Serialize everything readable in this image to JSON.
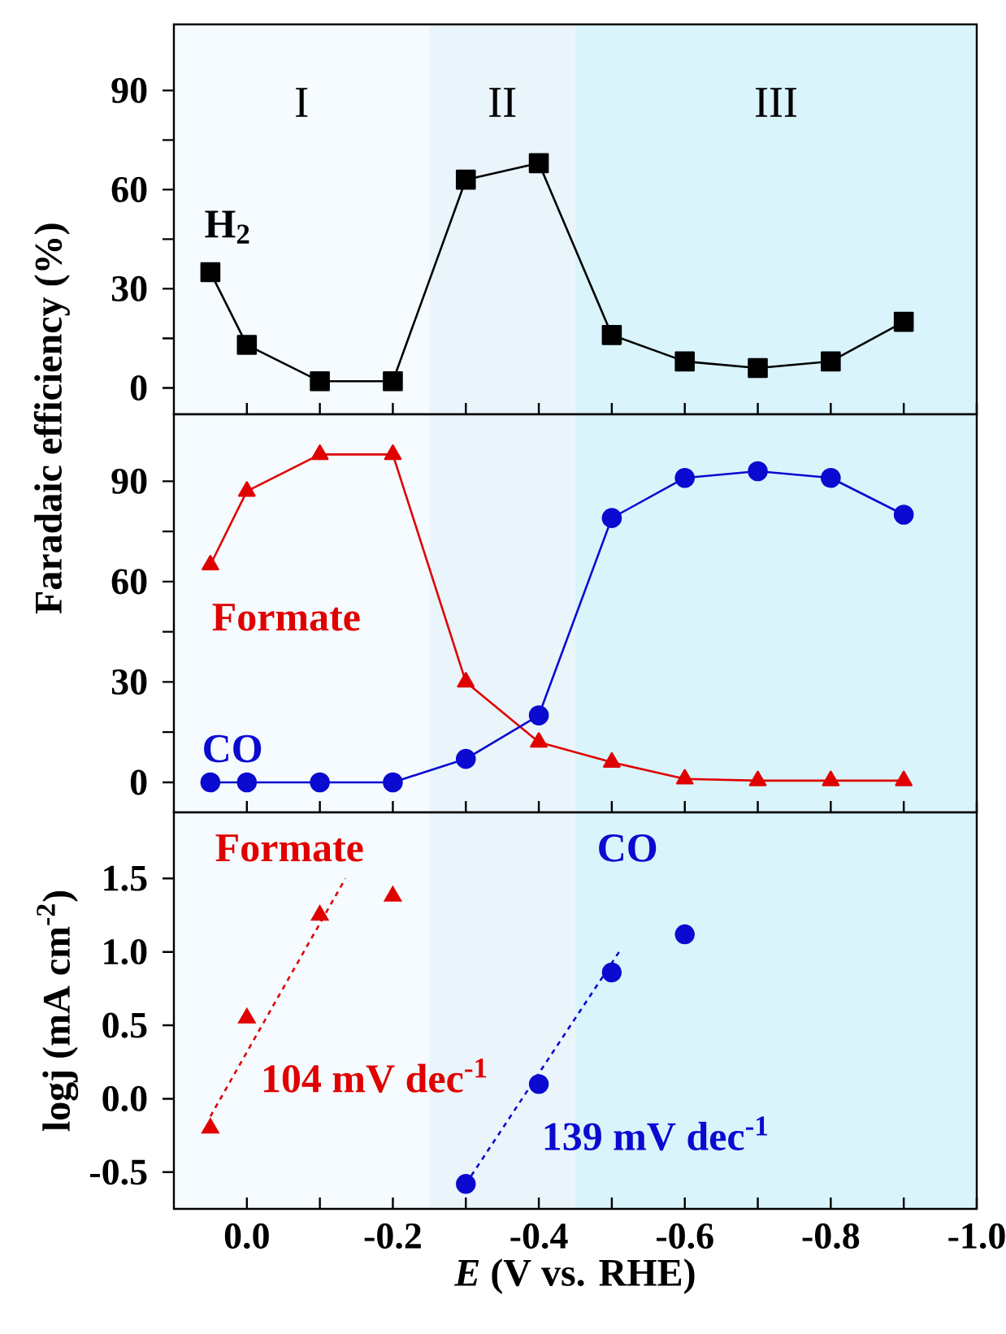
{
  "chart_data": [
    {
      "type": "line",
      "ylabel": "Faradaic efficiency (%)",
      "x": [
        0.05,
        0,
        -0.1,
        -0.2,
        -0.3,
        -0.4,
        -0.5,
        -0.6,
        -0.7,
        -0.8,
        -0.9
      ],
      "xlim": [
        0.1,
        -1.0
      ],
      "xticks": [
        {
          "value": 0,
          "label": null
        },
        {
          "value": -0.1,
          "label": null
        },
        {
          "value": -0.2,
          "label": null
        },
        {
          "value": -0.3,
          "label": null
        },
        {
          "value": -0.4,
          "label": null
        },
        {
          "value": -0.5,
          "label": null
        },
        {
          "value": -0.6,
          "label": null
        },
        {
          "value": -0.7,
          "label": null
        },
        {
          "value": -0.8,
          "label": null
        },
        {
          "value": -0.9,
          "label": null
        },
        {
          "value": -1.0,
          "label": null
        }
      ],
      "ylim": [
        -8,
        110
      ],
      "yticks": [
        0,
        {
          "value": 15,
          "label": null
        },
        30,
        {
          "value": 45,
          "label": null
        },
        60,
        {
          "value": 75,
          "label": null
        },
        90
      ],
      "tick_labels": "y",
      "bands": [
        {
          "axis": "x",
          "from": 0.1,
          "to": -0.25,
          "label": "I",
          "color": "#f5fbfe"
        },
        {
          "axis": "x",
          "from": -0.25,
          "to": -0.45,
          "label": "II",
          "color": "#eaf5fb"
        },
        {
          "axis": "x",
          "from": -0.45,
          "to": -1.0,
          "label": "III",
          "color": "#d9f4fb"
        }
      ],
      "series": [
        {
          "name": "H$_{2}$",
          "color": "#000000",
          "marker": "square",
          "values": [
            35,
            13,
            2,
            2,
            63,
            68,
            16,
            8,
            6,
            8,
            20
          ]
        }
      ]
    },
    {
      "type": "line",
      "x": [
        0.05,
        0,
        -0.1,
        -0.2,
        -0.3,
        -0.4,
        -0.5,
        -0.6,
        -0.7,
        -0.8,
        -0.9
      ],
      "xlim": [
        0.1,
        -1.0
      ],
      "xticks": [
        {
          "value": 0,
          "label": null
        },
        {
          "value": -0.1,
          "label": null
        },
        {
          "value": -0.2,
          "label": null
        },
        {
          "value": -0.3,
          "label": null
        },
        {
          "value": -0.4,
          "label": null
        },
        {
          "value": -0.5,
          "label": null
        },
        {
          "value": -0.6,
          "label": null
        },
        {
          "value": -0.7,
          "label": null
        },
        {
          "value": -0.8,
          "label": null
        },
        {
          "value": -0.9,
          "label": null
        },
        {
          "value": -1.0,
          "label": null
        }
      ],
      "ylim": [
        -9,
        110
      ],
      "yticks": [
        0,
        {
          "value": 15,
          "label": null
        },
        30,
        {
          "value": 45,
          "label": null
        },
        60,
        {
          "value": 75,
          "label": null
        },
        90
      ],
      "tick_labels": "y",
      "bands": [
        {
          "axis": "x",
          "from": 0.1,
          "to": -0.25,
          "color": "#f5fbfe"
        },
        {
          "axis": "x",
          "from": -0.25,
          "to": -0.45,
          "color": "#eaf5fb"
        },
        {
          "axis": "x",
          "from": -0.45,
          "to": -1.0,
          "color": "#d9f4fb"
        }
      ],
      "series": [
        {
          "name": "Formate",
          "color": "#e00000",
          "marker": "triangle",
          "values": [
            65,
            87,
            98,
            98,
            30,
            12,
            6,
            1,
            0.5,
            0.5,
            0.5
          ]
        },
        {
          "name": "CO",
          "color": "#0a0ad0",
          "marker": "circle",
          "values": [
            0,
            0,
            0,
            0,
            7,
            20,
            79,
            91,
            93,
            91,
            80
          ]
        }
      ]
    },
    {
      "type": "scatter",
      "ylabel": "logj  (mA cm$^{-2}$)",
      "xlabel": "*E* (V vs. RHE)",
      "xlim": [
        0.1,
        -1.0
      ],
      "xticks": [
        {
          "value": 0,
          "label": "0.0"
        },
        {
          "value": -0.1,
          "label": null
        },
        {
          "value": -0.2,
          "label": "-0.2"
        },
        {
          "value": -0.3,
          "label": null
        },
        {
          "value": -0.4,
          "label": "-0.4"
        },
        {
          "value": -0.5,
          "label": null
        },
        {
          "value": -0.6,
          "label": "-0.6"
        },
        {
          "value": -0.7,
          "label": null
        },
        {
          "value": -0.8,
          "label": "-0.8"
        },
        {
          "value": -0.9,
          "label": null
        },
        {
          "value": -1.0,
          "label": "-1.0"
        }
      ],
      "ylim": [
        -0.75,
        1.95
      ],
      "yticks": [
        {
          "value": -0.5,
          "label": "-0.5"
        },
        {
          "value": 0,
          "label": "0.0"
        },
        {
          "value": 0.5,
          "label": "0.5"
        },
        {
          "value": 1.0,
          "label": "1.0"
        },
        {
          "value": 1.5,
          "label": "1.5"
        }
      ],
      "bands": [
        {
          "axis": "x",
          "from": 0.1,
          "to": -0.25,
          "color": "#f5fbfe"
        },
        {
          "axis": "x",
          "from": -0.25,
          "to": -0.45,
          "color": "#eaf5fb"
        },
        {
          "axis": "x",
          "from": -0.45,
          "to": -1.0,
          "color": "#d9f4fb"
        }
      ],
      "annotations": [
        "104 mV dec$^{-1}$",
        "139 mV dec$^{-1}$"
      ],
      "series": [
        {
          "name": "Formate",
          "color": "#e00000",
          "marker": "triangle",
          "x": [
            0.05,
            0,
            -0.1,
            -0.2
          ],
          "values": [
            -0.2,
            0.55,
            1.25,
            1.38
          ]
        },
        {
          "name": "CO",
          "color": "#0a0ad0",
          "marker": "circle",
          "x": [
            -0.3,
            -0.4,
            -0.5,
            -0.6
          ],
          "values": [
            -0.58,
            0.1,
            0.86,
            1.12
          ]
        },
        {
          "type": "line",
          "color": "#e00000",
          "marker": "none",
          "line_style": "dashed",
          "x": [
            0.05,
            -0.135
          ],
          "values": [
            -0.12,
            1.5
          ]
        },
        {
          "type": "line",
          "color": "#0a0ad0",
          "marker": "none",
          "line_style": "dashed",
          "x": [
            -0.3,
            -0.51
          ],
          "values": [
            -0.58,
            1.0
          ]
        }
      ]
    }
  ]
}
